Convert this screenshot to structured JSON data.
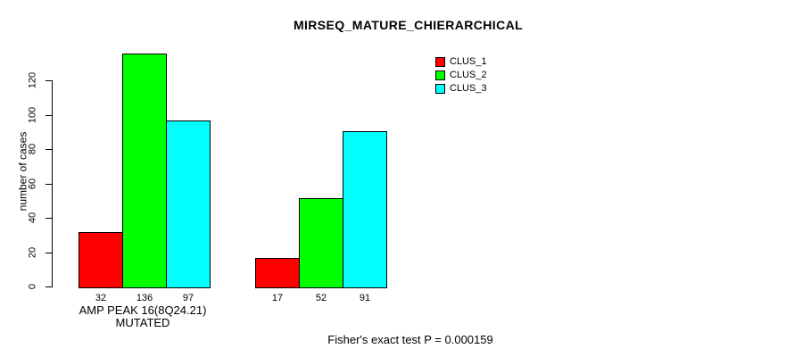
{
  "chart_data": {
    "type": "bar",
    "title": "MIRSEQ_MATURE_CHIERARCHICAL",
    "ylabel": "number of cases",
    "xlabel": "AMP PEAK 16(8Q24.21) MUTATED",
    "footnote": "Fisher's exact test P = 0.000159",
    "yticks": [
      0,
      20,
      40,
      60,
      80,
      100,
      120
    ],
    "axis_range": [
      0,
      120
    ],
    "grid": false,
    "legend_position": "top-right",
    "categories": [
      "AMP PEAK 16(8Q24.21) MUTATED",
      ""
    ],
    "series": [
      {
        "name": "CLUS_1",
        "color": "#FF0000",
        "values": [
          32,
          17
        ]
      },
      {
        "name": "CLUS_2",
        "color": "#00FF00",
        "values": [
          136,
          52
        ]
      },
      {
        "name": "CLUS_3",
        "color": "#00FFFF",
        "values": [
          97,
          91
        ]
      }
    ]
  },
  "colors": {
    "background": "#FFFFFF",
    "axis": "#000000",
    "text": "#000000"
  }
}
